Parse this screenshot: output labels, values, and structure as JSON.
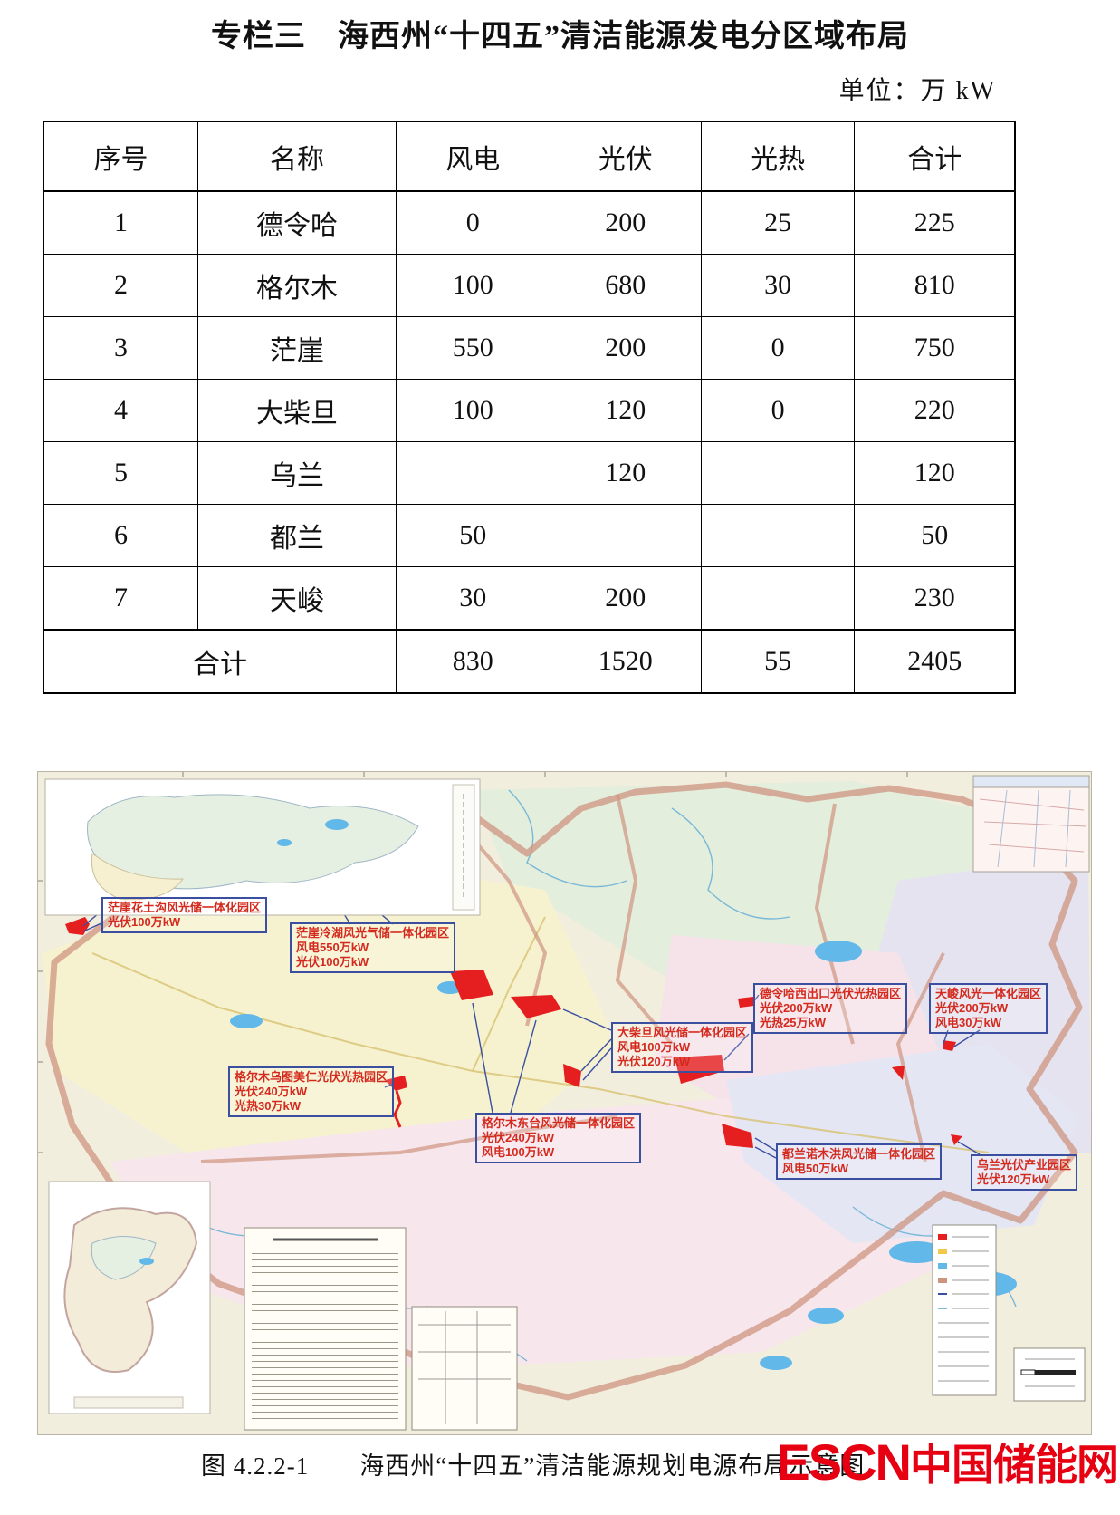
{
  "page": {
    "title": "专栏三　海西州“十四五”清洁能源发电分区域布局",
    "unit_label": "单位：万 kW"
  },
  "table": {
    "headers": [
      "序号",
      "名称",
      "风电",
      "光伏",
      "光热",
      "合计"
    ],
    "rows": [
      {
        "no": "1",
        "name": "德令哈",
        "wind": "0",
        "pv": "200",
        "csp": "25",
        "total": "225"
      },
      {
        "no": "2",
        "name": "格尔木",
        "wind": "100",
        "pv": "680",
        "csp": "30",
        "total": "810"
      },
      {
        "no": "3",
        "name": "茫崖",
        "wind": "550",
        "pv": "200",
        "csp": "0",
        "total": "750"
      },
      {
        "no": "4",
        "name": "大柴旦",
        "wind": "100",
        "pv": "120",
        "csp": "0",
        "total": "220"
      },
      {
        "no": "5",
        "name": "乌兰",
        "wind": "",
        "pv": "120",
        "csp": "",
        "total": "120"
      },
      {
        "no": "6",
        "name": "都兰",
        "wind": "50",
        "pv": "",
        "csp": "",
        "total": "50"
      },
      {
        "no": "7",
        "name": "天峻",
        "wind": "30",
        "pv": "200",
        "csp": "",
        "total": "230"
      }
    ],
    "total_row": {
      "label": "合计",
      "wind": "830",
      "pv": "1520",
      "csp": "55",
      "total": "2405"
    }
  },
  "map": {
    "labels": [
      {
        "id": "mangya-huatugou",
        "lines": [
          "茫崖花土沟风光储一体化园区",
          "光伏100万kW"
        ]
      },
      {
        "id": "mangya-lenghu",
        "lines": [
          "茫崖冷湖风光气储一体化园区",
          "风电550万kW",
          "光伏100万kW"
        ]
      },
      {
        "id": "delingha",
        "lines": [
          "德令哈西出口光伏光热园区",
          "光伏200万kW",
          "光热25万kW"
        ]
      },
      {
        "id": "tianjun",
        "lines": [
          "天峻风光一体化园区",
          "光伏200万kW",
          "风电30万kW"
        ]
      },
      {
        "id": "dachaidan",
        "lines": [
          "大柴旦风光储一体化园区",
          "风电100万kW",
          "光伏120万kW"
        ]
      },
      {
        "id": "geermu-wutumeiren",
        "lines": [
          "格尔木乌图美仁光伏光热园区",
          "光伏240万kW",
          "光热30万kW"
        ]
      },
      {
        "id": "geermu-dongtai",
        "lines": [
          "格尔木东台风光储一体化园区",
          "光伏240万kW",
          "风电100万kW"
        ]
      },
      {
        "id": "dulan-nuomuhong",
        "lines": [
          "都兰诺木洪风光储一体化园区",
          "风电50万kW"
        ]
      },
      {
        "id": "wulan",
        "lines": [
          "乌兰光伏产业园区",
          "光伏120万kW"
        ]
      }
    ],
    "colors": {
      "label_border": "#3a4fa0",
      "label_text": "#d42a1e",
      "project_patch": "#e51f1f",
      "boundary": "#cf9480",
      "lake": "#62b8e8"
    }
  },
  "caption": {
    "figure_no": "图 4.2.2-1",
    "text": "海西州“十四五”清洁能源规划电源布局示意图"
  },
  "logo": {
    "escn": "ESCN",
    "cn": "中国储能网"
  }
}
